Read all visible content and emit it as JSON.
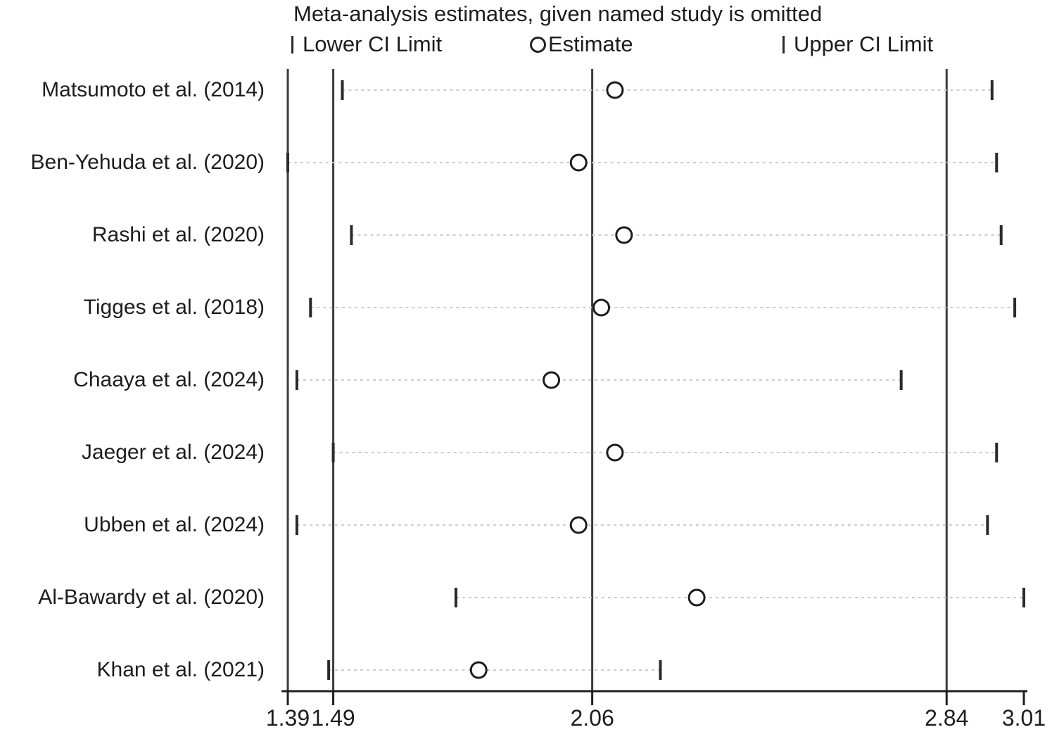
{
  "colors": {
    "background": "#ffffff",
    "text": "#1d1d1d",
    "reference_line": "#3c3c3c",
    "axis": "#1f1f1f",
    "marker": "#2a2a2a",
    "dotted_line": "#c9ccd0"
  },
  "chart_data": {
    "type": "scatter",
    "subtype": "leave-one-out-meta-analysis-forest",
    "title": "Meta-analysis estimates, given named study is omitted",
    "legend": [
      "Lower CI Limit",
      "Estimate",
      "Upper CI Limit"
    ],
    "legend_position": "top",
    "grid": false,
    "xlim": [
      1.39,
      3.01
    ],
    "x_ticks": [
      1.39,
      1.49,
      2.06,
      2.84,
      3.01
    ],
    "x_tick_labels": [
      "1.39",
      "1.49",
      "2.06",
      "2.84",
      "3.01"
    ],
    "reference_lines": [
      1.39,
      1.49,
      2.06,
      2.84
    ],
    "overall": {
      "lower_ci": 1.49,
      "estimate": 2.06,
      "upper_ci": 2.84
    },
    "studies": [
      {
        "label": "Matsumoto et al. (2014)",
        "lower": 1.51,
        "estimate": 2.11,
        "upper": 2.94
      },
      {
        "label": "Ben-Yehuda et al. (2020)",
        "lower": 1.39,
        "estimate": 2.03,
        "upper": 2.95
      },
      {
        "label": "Rashi et al. (2020)",
        "lower": 1.53,
        "estimate": 2.13,
        "upper": 2.96
      },
      {
        "label": "Tigges et al. (2018)",
        "lower": 1.44,
        "estimate": 2.08,
        "upper": 2.99
      },
      {
        "label": "Chaaya et al. (2024)",
        "lower": 1.41,
        "estimate": 1.97,
        "upper": 2.74
      },
      {
        "label": "Jaeger et al. (2024)",
        "lower": 1.49,
        "estimate": 2.11,
        "upper": 2.95
      },
      {
        "label": "Ubben et al. (2024)",
        "lower": 1.41,
        "estimate": 2.03,
        "upper": 2.93
      },
      {
        "label": "Al-Bawardy et al. (2020)",
        "lower": 1.76,
        "estimate": 2.29,
        "upper": 3.01
      },
      {
        "label": "Khan et al. (2021)",
        "lower": 1.48,
        "estimate": 1.81,
        "upper": 2.21
      }
    ]
  }
}
